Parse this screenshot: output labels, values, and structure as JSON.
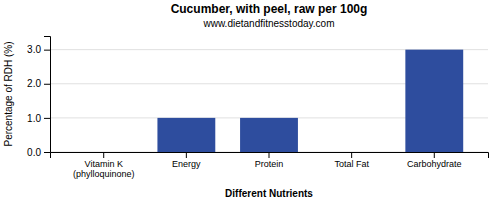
{
  "chart_data": {
    "type": "bar",
    "title": "Cucumber, with peel, raw per 100g",
    "subtitle": "www.dietandfitnesstoday.com",
    "xlabel": "Different Nutrients",
    "ylabel": "Percentage of RDH (%)",
    "categories": [
      "Vitamin K (phylloquinone)",
      "Energy",
      "Protein",
      "Total Fat",
      "Carbohydrate"
    ],
    "values": [
      0.0,
      1.0,
      1.0,
      0.0,
      3.0
    ],
    "color": "#2e4d9e",
    "ylim": [
      0,
      3.4
    ],
    "yticks": [
      {
        "value": 0.0,
        "label": "0.0"
      },
      {
        "value": 1.0,
        "label": "1.0"
      },
      {
        "value": 2.0,
        "label": "2.0"
      },
      {
        "value": 3.0,
        "label": "3.0"
      }
    ],
    "grid": true
  }
}
